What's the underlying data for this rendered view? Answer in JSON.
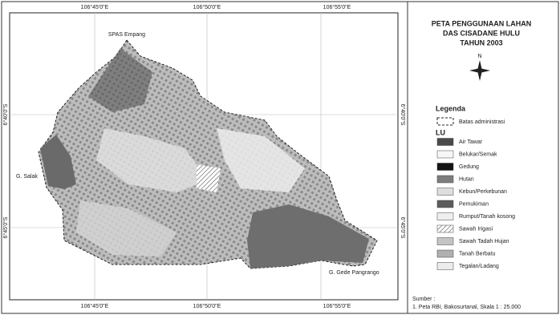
{
  "map": {
    "coords": {
      "top": [
        "106°45'0\"E",
        "106°50'0\"E",
        "106°55'0\"E"
      ],
      "bottom": [
        "106°45'0\"E",
        "106°50'0\"E",
        "106°55'0\"E"
      ],
      "left": [
        "6°40'0\"S",
        "6°45'0\"S"
      ],
      "right": [
        "6°40'0\"S",
        "6°45'0\"S"
      ]
    },
    "places": [
      "SPAS Empang",
      "G. Salak",
      "G. Gede Pangrango"
    ]
  },
  "panel": {
    "title": [
      "PETA PENGGUNAAN LAHAN",
      "DAS CISADANE HULU",
      "TAHUN 2003"
    ],
    "north": "N",
    "legend_title": "Legenda",
    "boundary": "Batas administrasi",
    "group": "LU",
    "items": [
      {
        "label": "Air Tawar",
        "color": "#4a4a4a"
      },
      {
        "label": "Belukar/Semak",
        "color": "#f7f7f7"
      },
      {
        "label": "Gedung",
        "color": "#141414"
      },
      {
        "label": "Hutan",
        "color": "#7d7d7d"
      },
      {
        "label": "Kebun/Perkebunan",
        "color": "#dedede"
      },
      {
        "label": "Pemukiman",
        "color": "#5c5c5c"
      },
      {
        "label": "Rumput/Tanah kosong",
        "color": "#efefef"
      },
      {
        "label": "Sawah Irigasi",
        "color": "#ffffff",
        "hatched": true
      },
      {
        "label": "Sawah Tadah Hujan",
        "color": "#c4c4c4"
      },
      {
        "label": "Tanah Berbatu",
        "color": "#b0b0b0"
      },
      {
        "label": "Tegalan/Ladang",
        "color": "#ececec"
      }
    ],
    "source_title": "Sumber :",
    "source": "1. Peta RBI, Bakosurtanal, Skala 1 : 25.000"
  }
}
